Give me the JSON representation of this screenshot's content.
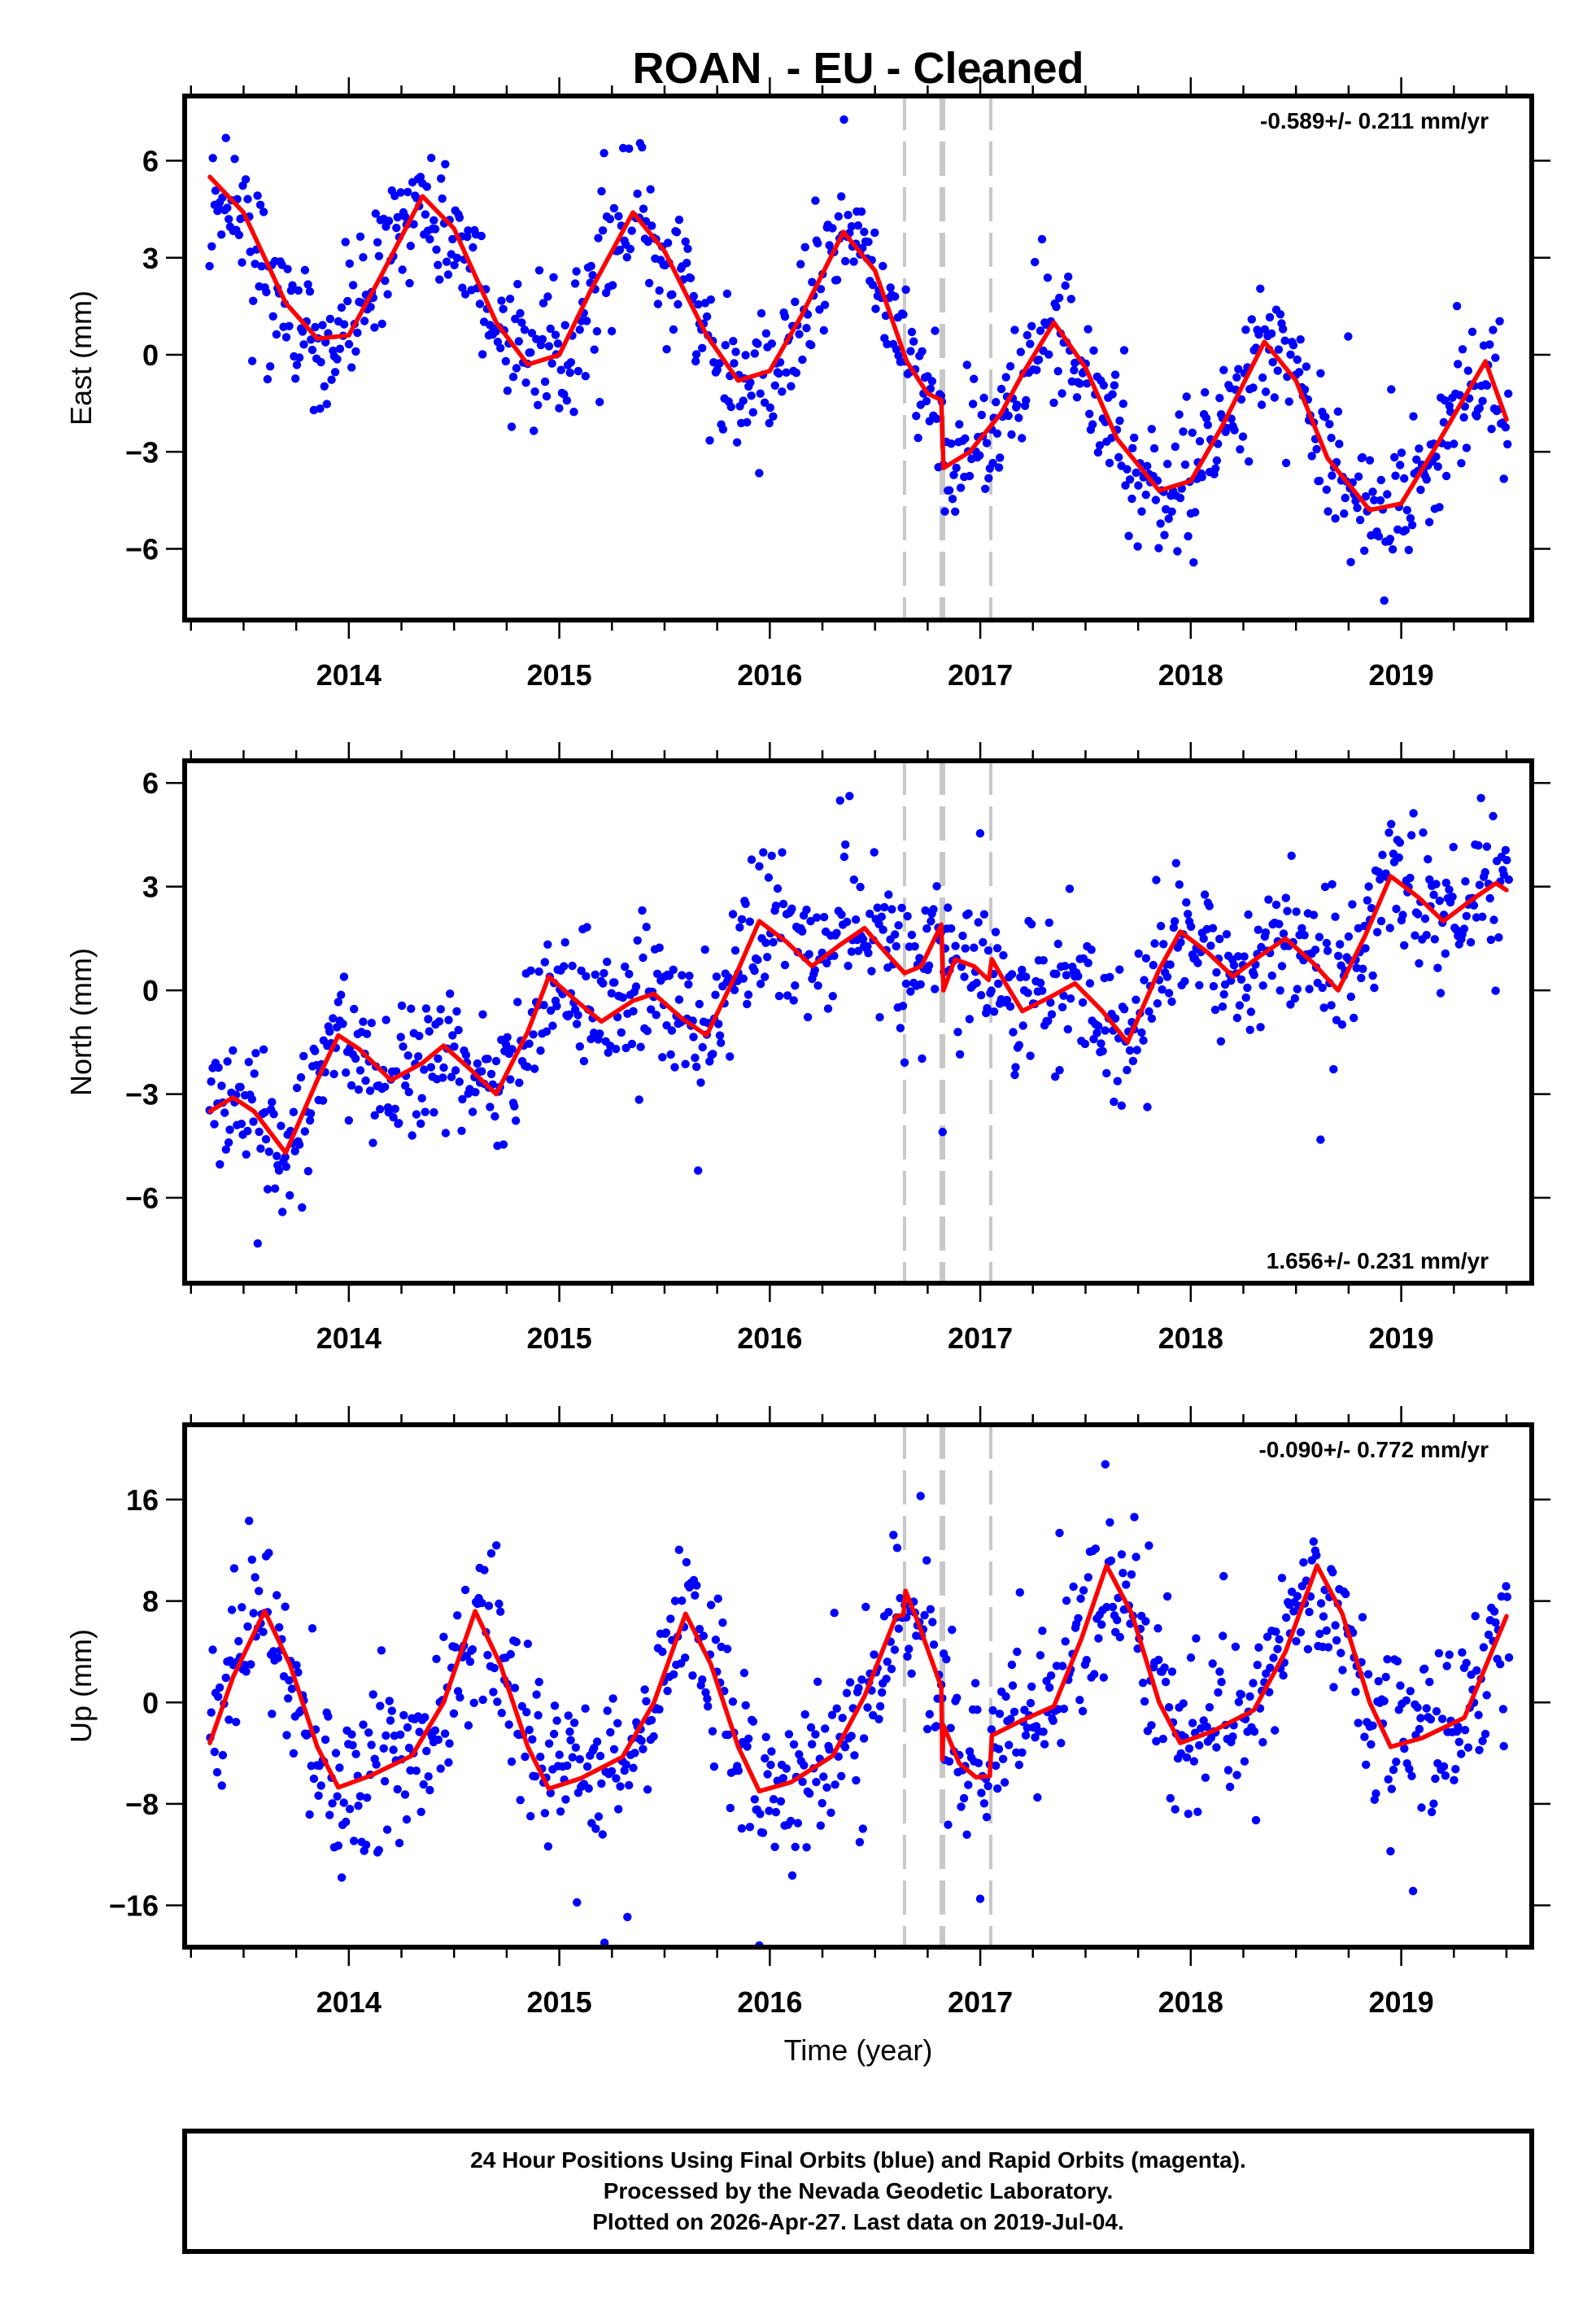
{
  "chart_data": {
    "type": "scatter",
    "title": "ROAN  - EU - Cleaned",
    "xlabel": "Time (year)",
    "xlim": [
      2013.22,
      2019.62
    ],
    "x_ticks": [
      "2014",
      "2015",
      "2016",
      "2017",
      "2018",
      "2019"
    ],
    "x_tick_values": [
      2014,
      2015,
      2016,
      2017,
      2018,
      2019
    ],
    "x_minor_step": 0.25,
    "data_start": 2013.34,
    "data_end": 2019.51,
    "step_markers": [
      {
        "x": 2016.64,
        "style": "dashed",
        "weight": "thin"
      },
      {
        "x": 2016.82,
        "style": "dashed",
        "weight": "thick"
      },
      {
        "x": 2017.05,
        "style": "dashed",
        "weight": "thin"
      }
    ],
    "colors": {
      "obs": "#0000ff",
      "model": "#ff0000",
      "markers": "#c8c8c8",
      "frame": "#000000"
    },
    "panels": [
      {
        "name": "east",
        "ylabel": "East (mm)",
        "ylim": [
          -8.2,
          8.0
        ],
        "y_ticks": [
          "6",
          "3",
          "0",
          "−3",
          "−6"
        ],
        "y_tick_values": [
          6,
          3,
          0,
          -3,
          -6
        ],
        "rate": "-0.589+/- 0.211 mm/yr",
        "rate_position": "top-right",
        "noise_sigma": 1.0,
        "model": [
          [
            2013.34,
            5.5
          ],
          [
            2013.5,
            4.4
          ],
          [
            2013.7,
            1.6
          ],
          [
            2013.85,
            0.5
          ],
          [
            2014.0,
            0.6
          ],
          [
            2014.15,
            2.4
          ],
          [
            2014.35,
            4.9
          ],
          [
            2014.5,
            3.9
          ],
          [
            2014.7,
            1.0
          ],
          [
            2014.85,
            -0.3
          ],
          [
            2015.0,
            0.0
          ],
          [
            2015.15,
            2.0
          ],
          [
            2015.35,
            4.4
          ],
          [
            2015.5,
            3.2
          ],
          [
            2015.7,
            0.6
          ],
          [
            2015.85,
            -0.8
          ],
          [
            2016.0,
            -0.5
          ],
          [
            2016.15,
            1.2
          ],
          [
            2016.35,
            3.8
          ],
          [
            2016.5,
            2.6
          ],
          [
            2016.65,
            -0.2
          ],
          [
            2016.75,
            -1.2
          ],
          [
            2016.815,
            -1.4
          ],
          [
            2016.825,
            -3.5
          ],
          [
            2016.95,
            -3.0
          ],
          [
            2017.1,
            -1.8
          ],
          [
            2017.2,
            -0.6
          ],
          [
            2017.35,
            1.0
          ],
          [
            2017.5,
            -0.4
          ],
          [
            2017.65,
            -2.6
          ],
          [
            2017.85,
            -4.2
          ],
          [
            2018.0,
            -3.9
          ],
          [
            2018.15,
            -2.2
          ],
          [
            2018.35,
            0.4
          ],
          [
            2018.5,
            -0.8
          ],
          [
            2018.65,
            -3.2
          ],
          [
            2018.85,
            -4.8
          ],
          [
            2019.0,
            -4.6
          ],
          [
            2019.15,
            -3.0
          ],
          [
            2019.4,
            -0.2
          ],
          [
            2019.5,
            -2.0
          ]
        ]
      },
      {
        "name": "north",
        "ylabel": "North (mm)",
        "ylim": [
          -8.47,
          6.64
        ],
        "y_ticks": [
          "6",
          "3",
          "0",
          "−3",
          "−6"
        ],
        "y_tick_values": [
          6,
          3,
          0,
          -3,
          -6
        ],
        "rate": "1.656+/- 0.231 mm/yr",
        "rate_position": "bottom-right",
        "noise_sigma": 1.05,
        "model": [
          [
            2013.34,
            -3.5
          ],
          [
            2013.45,
            -3.1
          ],
          [
            2013.55,
            -3.5
          ],
          [
            2013.7,
            -4.7
          ],
          [
            2013.85,
            -2.6
          ],
          [
            2013.95,
            -1.3
          ],
          [
            2014.05,
            -1.7
          ],
          [
            2014.2,
            -2.6
          ],
          [
            2014.35,
            -2.1
          ],
          [
            2014.45,
            -1.6
          ],
          [
            2014.58,
            -2.3
          ],
          [
            2014.7,
            -3.0
          ],
          [
            2014.85,
            -1.2
          ],
          [
            2014.95,
            0.4
          ],
          [
            2015.08,
            -0.3
          ],
          [
            2015.2,
            -0.9
          ],
          [
            2015.35,
            -0.3
          ],
          [
            2015.45,
            -0.1
          ],
          [
            2015.58,
            -0.8
          ],
          [
            2015.7,
            -1.3
          ],
          [
            2015.85,
            0.6
          ],
          [
            2015.95,
            2.0
          ],
          [
            2016.08,
            1.4
          ],
          [
            2016.2,
            0.7
          ],
          [
            2016.33,
            1.3
          ],
          [
            2016.45,
            1.8
          ],
          [
            2016.55,
            1.1
          ],
          [
            2016.64,
            0.5
          ],
          [
            2016.72,
            0.7
          ],
          [
            2016.815,
            1.9
          ],
          [
            2016.825,
            0.0
          ],
          [
            2016.88,
            0.9
          ],
          [
            2016.97,
            0.7
          ],
          [
            2017.04,
            0.3
          ],
          [
            2017.055,
            0.9
          ],
          [
            2017.12,
            0.2
          ],
          [
            2017.2,
            -0.6
          ],
          [
            2017.33,
            -0.2
          ],
          [
            2017.45,
            0.2
          ],
          [
            2017.58,
            -0.6
          ],
          [
            2017.7,
            -1.5
          ],
          [
            2017.85,
            0.6
          ],
          [
            2017.95,
            1.7
          ],
          [
            2018.08,
            1.1
          ],
          [
            2018.2,
            0.4
          ],
          [
            2018.33,
            1.0
          ],
          [
            2018.45,
            1.5
          ],
          [
            2018.58,
            0.8
          ],
          [
            2018.7,
            0.0
          ],
          [
            2018.83,
            1.6
          ],
          [
            2018.95,
            3.3
          ],
          [
            2019.08,
            2.7
          ],
          [
            2019.2,
            2.0
          ],
          [
            2019.33,
            2.6
          ],
          [
            2019.45,
            3.1
          ],
          [
            2019.5,
            2.9
          ]
        ]
      },
      {
        "name": "up",
        "ylabel": "Up (mm)",
        "ylim": [
          -19.3,
          21.9
        ],
        "y_ticks": [
          "16",
          "8",
          "0",
          "−8",
          "−16"
        ],
        "y_tick_values": [
          16,
          8,
          0,
          -8,
          -16
        ],
        "rate": "-0.090+/- 0.772 mm/yr",
        "rate_position": "top-right",
        "noise_sigma": 3.4,
        "model": [
          [
            2013.34,
            -3.2
          ],
          [
            2013.45,
            2.0
          ],
          [
            2013.6,
            7.2
          ],
          [
            2013.72,
            3.0
          ],
          [
            2013.85,
            -3.5
          ],
          [
            2013.95,
            -6.7
          ],
          [
            2014.1,
            -5.8
          ],
          [
            2014.3,
            -4.2
          ],
          [
            2014.45,
            0.0
          ],
          [
            2014.6,
            7.2
          ],
          [
            2014.72,
            3.0
          ],
          [
            2014.85,
            -3.5
          ],
          [
            2014.95,
            -6.8
          ],
          [
            2015.1,
            -6.0
          ],
          [
            2015.3,
            -4.3
          ],
          [
            2015.45,
            0.0
          ],
          [
            2015.6,
            7.0
          ],
          [
            2015.72,
            3.0
          ],
          [
            2015.85,
            -3.5
          ],
          [
            2015.95,
            -7.0
          ],
          [
            2016.1,
            -6.3
          ],
          [
            2016.3,
            -4.2
          ],
          [
            2016.45,
            0.5
          ],
          [
            2016.6,
            6.8
          ],
          [
            2016.635,
            6.9
          ],
          [
            2016.645,
            8.8
          ],
          [
            2016.7,
            6.5
          ],
          [
            2016.815,
            1.2
          ],
          [
            2016.82,
            -4.5
          ],
          [
            2016.825,
            -1.8
          ],
          [
            2016.9,
            -4.8
          ],
          [
            2016.98,
            -5.9
          ],
          [
            2017.045,
            -5.8
          ],
          [
            2017.055,
            -2.6
          ],
          [
            2017.2,
            -1.4
          ],
          [
            2017.35,
            -0.3
          ],
          [
            2017.48,
            5.0
          ],
          [
            2017.6,
            10.8
          ],
          [
            2017.72,
            7.0
          ],
          [
            2017.85,
            0.0
          ],
          [
            2017.95,
            -3.2
          ],
          [
            2018.1,
            -2.3
          ],
          [
            2018.3,
            -0.6
          ],
          [
            2018.45,
            4.0
          ],
          [
            2018.6,
            10.8
          ],
          [
            2018.72,
            7.0
          ],
          [
            2018.85,
            0.0
          ],
          [
            2018.95,
            -3.5
          ],
          [
            2019.1,
            -2.8
          ],
          [
            2019.3,
            -1.2
          ],
          [
            2019.5,
            6.8
          ]
        ]
      }
    ]
  },
  "footer": {
    "line1": "24 Hour Positions Using Final Orbits (blue) and Rapid Orbits (magenta).",
    "line2": "Processed by the Nevada Geodetic Laboratory.",
    "line3": "Plotted on 2026-Apr-27. Last data on 2019-Jul-04."
  }
}
